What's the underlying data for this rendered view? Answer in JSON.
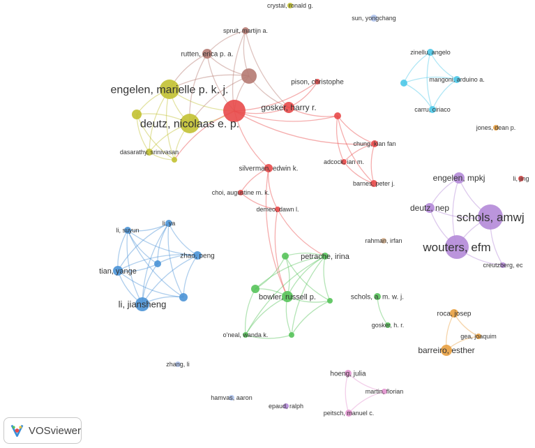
{
  "app": {
    "name": "VOSviewer"
  },
  "clusters": {
    "red": "#e84a4a",
    "brown": "#b57a72",
    "yellow": "#c2c132",
    "cyan": "#4cc8e8",
    "purple": "#b48ad8",
    "blue": "#4b93d6",
    "green": "#57c35a",
    "orange": "#e8a040",
    "pink": "#e293cf",
    "lightblue": "#b0c4ee",
    "tan": "#d8b490"
  },
  "nodes": [
    {
      "id": "crystal",
      "label": "crystal, ronald g.",
      "cluster": "yellow"
    },
    {
      "id": "sun",
      "label": "sun, yongchang",
      "cluster": "lightblue"
    },
    {
      "id": "spruit",
      "label": "spruit, martijn a.",
      "cluster": "brown"
    },
    {
      "id": "rutten",
      "label": "rutten, erica p. a.",
      "cluster": "brown"
    },
    {
      "id": "brown_hub",
      "label": "",
      "cluster": "brown"
    },
    {
      "id": "engelen_mpkj_full",
      "label": "engelen, marielle p. k. j.",
      "cluster": "yellow"
    },
    {
      "id": "deutz_nep_full",
      "label": "deutz, nicolaas e. p.",
      "cluster": "yellow"
    },
    {
      "id": "yellow_left",
      "label": "",
      "cluster": "yellow"
    },
    {
      "id": "dasarathy",
      "label": "dasarathy, srinivasan",
      "cluster": "yellow"
    },
    {
      "id": "yellow_small",
      "label": "",
      "cluster": "yellow"
    },
    {
      "id": "red_hub",
      "label": "",
      "cluster": "red"
    },
    {
      "id": "pison",
      "label": "pison, christophe",
      "cluster": "red"
    },
    {
      "id": "gosker_hr",
      "label": "gosker, harry r.",
      "cluster": "red"
    },
    {
      "id": "red_small",
      "label": "",
      "cluster": "red"
    },
    {
      "id": "chung",
      "label": "chung, kian fan",
      "cluster": "red"
    },
    {
      "id": "adcock",
      "label": "adcock, ian m.",
      "cluster": "red"
    },
    {
      "id": "barnes",
      "label": "barnes, peter j.",
      "cluster": "red"
    },
    {
      "id": "silverman",
      "label": "silverman, edwin k.",
      "cluster": "red"
    },
    {
      "id": "choi",
      "label": "choi, augustine m. k.",
      "cluster": "red"
    },
    {
      "id": "demeo",
      "label": "demeo, dawn l.",
      "cluster": "red"
    },
    {
      "id": "zinellu",
      "label": "zinellu, angelo",
      "cluster": "cyan"
    },
    {
      "id": "mangoni",
      "label": "mangoni, arduino a.",
      "cluster": "cyan"
    },
    {
      "id": "carru",
      "label": "carru, ciriaco",
      "cluster": "cyan"
    },
    {
      "id": "cyan_left",
      "label": "",
      "cluster": "cyan"
    },
    {
      "id": "jones",
      "label": "jones, dean p.",
      "cluster": "orange"
    },
    {
      "id": "li_jing",
      "label": "li, jing",
      "cluster": "red"
    },
    {
      "id": "engelen_mpkj",
      "label": "engelen, mpkj",
      "cluster": "purple"
    },
    {
      "id": "deutz_nep",
      "label": "deutz, nep",
      "cluster": "purple"
    },
    {
      "id": "schols_amwj",
      "label": "schols, amwj",
      "cluster": "purple"
    },
    {
      "id": "wouters",
      "label": "wouters, efm",
      "cluster": "purple"
    },
    {
      "id": "creutzberg",
      "label": "creutzberg, ec",
      "cluster": "purple"
    },
    {
      "id": "rahman",
      "label": "rahman, irfan",
      "cluster": "tan"
    },
    {
      "id": "li_suyun",
      "label": "li, suyun",
      "cluster": "blue"
    },
    {
      "id": "li_ya",
      "label": "li, ya",
      "cluster": "blue"
    },
    {
      "id": "zhao",
      "label": "zhao, peng",
      "cluster": "blue"
    },
    {
      "id": "tian",
      "label": "tian, yange",
      "cluster": "blue"
    },
    {
      "id": "blue_mid",
      "label": "",
      "cluster": "blue"
    },
    {
      "id": "blue_right",
      "label": "",
      "cluster": "blue"
    },
    {
      "id": "li_jiansheng",
      "label": "li, jiansheng",
      "cluster": "blue"
    },
    {
      "id": "petrache",
      "label": "petrache, irina",
      "cluster": "green"
    },
    {
      "id": "bowler",
      "label": "bowler, russell p.",
      "cluster": "green"
    },
    {
      "id": "green_left",
      "label": "",
      "cluster": "green"
    },
    {
      "id": "green_right",
      "label": "",
      "cluster": "green"
    },
    {
      "id": "green_tl",
      "label": "",
      "cluster": "green"
    },
    {
      "id": "oneal",
      "label": "o'neal, wanda k.",
      "cluster": "green"
    },
    {
      "id": "green_bottom",
      "label": "",
      "cluster": "green"
    },
    {
      "id": "schols_amwj_full",
      "label": "schols, a. m. w. j.",
      "cluster": "green"
    },
    {
      "id": "gosker_h",
      "label": "gosker, h. r.",
      "cluster": "green"
    },
    {
      "id": "roca",
      "label": "roca, josep",
      "cluster": "orange"
    },
    {
      "id": "gea",
      "label": "gea, joaquim",
      "cluster": "orange"
    },
    {
      "id": "barreiro",
      "label": "barreiro, esther",
      "cluster": "orange"
    },
    {
      "id": "zhang",
      "label": "zhang, li",
      "cluster": "lightblue"
    },
    {
      "id": "hoeng",
      "label": "hoeng, julia",
      "cluster": "pink"
    },
    {
      "id": "martin",
      "label": "martin, florian",
      "cluster": "pink"
    },
    {
      "id": "peitsch",
      "label": "peitsch, manuel c.",
      "cluster": "pink"
    },
    {
      "id": "hamvas",
      "label": "hamvas, aaron",
      "cluster": "lightblue"
    },
    {
      "id": "epaud",
      "label": "epaud, ralph",
      "cluster": "purple"
    }
  ],
  "links": [
    [
      "spruit",
      "rutten"
    ],
    [
      "spruit",
      "brown_hub"
    ],
    [
      "spruit",
      "red_hub"
    ],
    [
      "spruit",
      "gosker_hr"
    ],
    [
      "rutten",
      "brown_hub"
    ],
    [
      "rutten",
      "engelen_mpkj_full"
    ],
    [
      "rutten",
      "deutz_nep_full"
    ],
    [
      "rutten",
      "red_hub"
    ],
    [
      "brown_hub",
      "red_hub"
    ],
    [
      "brown_hub",
      "deutz_nep_full"
    ],
    [
      "brown_hub",
      "engelen_mpkj_full"
    ],
    [
      "brown_hub",
      "gosker_hr"
    ],
    [
      "engelen_mpkj_full",
      "deutz_nep_full"
    ],
    [
      "engelen_mpkj_full",
      "yellow_left"
    ],
    [
      "engelen_mpkj_full",
      "dasarathy"
    ],
    [
      "engelen_mpkj_full",
      "yellow_small"
    ],
    [
      "engelen_mpkj_full",
      "red_hub"
    ],
    [
      "deutz_nep_full",
      "yellow_left"
    ],
    [
      "deutz_nep_full",
      "dasarathy"
    ],
    [
      "deutz_nep_full",
      "yellow_small"
    ],
    [
      "deutz_nep_full",
      "red_hub"
    ],
    [
      "yellow_left",
      "dasarathy"
    ],
    [
      "yellow_left",
      "yellow_small"
    ],
    [
      "dasarathy",
      "yellow_small"
    ],
    [
      "red_hub",
      "gosker_hr"
    ],
    [
      "red_hub",
      "pison"
    ],
    [
      "red_hub",
      "red_small"
    ],
    [
      "red_hub",
      "chung"
    ],
    [
      "red_hub",
      "silverman"
    ],
    [
      "red_hub",
      "yellow_small"
    ],
    [
      "gosker_hr",
      "red_small"
    ],
    [
      "gosker_hr",
      "pison"
    ],
    [
      "red_small",
      "chung"
    ],
    [
      "red_small",
      "adcock"
    ],
    [
      "red_small",
      "barnes"
    ],
    [
      "chung",
      "adcock"
    ],
    [
      "chung",
      "barnes"
    ],
    [
      "adcock",
      "barnes"
    ],
    [
      "silverman",
      "choi"
    ],
    [
      "silverman",
      "demeo"
    ],
    [
      "choi",
      "demeo"
    ],
    [
      "demeo",
      "bowler"
    ],
    [
      "demeo",
      "petrache"
    ],
    [
      "silverman",
      "bowler"
    ],
    [
      "zinellu",
      "mangoni"
    ],
    [
      "zinellu",
      "carru"
    ],
    [
      "zinellu",
      "cyan_left"
    ],
    [
      "mangoni",
      "carru"
    ],
    [
      "mangoni",
      "cyan_left"
    ],
    [
      "carru",
      "cyan_left"
    ],
    [
      "engelen_mpkj",
      "deutz_nep"
    ],
    [
      "engelen_mpkj",
      "schols_amwj"
    ],
    [
      "engelen_mpkj",
      "wouters"
    ],
    [
      "deutz_nep",
      "schols_amwj"
    ],
    [
      "deutz_nep",
      "wouters"
    ],
    [
      "schols_amwj",
      "wouters"
    ],
    [
      "schols_amwj",
      "creutzberg"
    ],
    [
      "wouters",
      "creutzberg"
    ],
    [
      "li_suyun",
      "li_ya"
    ],
    [
      "li_suyun",
      "zhao"
    ],
    [
      "li_suyun",
      "tian"
    ],
    [
      "li_suyun",
      "blue_mid"
    ],
    [
      "li_suyun",
      "blue_right"
    ],
    [
      "li_suyun",
      "li_jiansheng"
    ],
    [
      "li_ya",
      "zhao"
    ],
    [
      "li_ya",
      "tian"
    ],
    [
      "li_ya",
      "blue_mid"
    ],
    [
      "li_ya",
      "blue_right"
    ],
    [
      "li_ya",
      "li_jiansheng"
    ],
    [
      "zhao",
      "tian"
    ],
    [
      "zhao",
      "blue_mid"
    ],
    [
      "zhao",
      "blue_right"
    ],
    [
      "zhao",
      "li_jiansheng"
    ],
    [
      "tian",
      "blue_mid"
    ],
    [
      "tian",
      "blue_right"
    ],
    [
      "tian",
      "li_jiansheng"
    ],
    [
      "blue_mid",
      "li_jiansheng"
    ],
    [
      "blue_right",
      "li_jiansheng"
    ],
    [
      "petrache",
      "bowler"
    ],
    [
      "petrache",
      "green_left"
    ],
    [
      "petrache",
      "green_right"
    ],
    [
      "petrache",
      "green_tl"
    ],
    [
      "petrache",
      "oneal"
    ],
    [
      "petrache",
      "green_bottom"
    ],
    [
      "bowler",
      "green_left"
    ],
    [
      "bowler",
      "green_right"
    ],
    [
      "bowler",
      "green_tl"
    ],
    [
      "bowler",
      "oneal"
    ],
    [
      "bowler",
      "green_bottom"
    ],
    [
      "green_left",
      "green_tl"
    ],
    [
      "green_left",
      "oneal"
    ],
    [
      "green_right",
      "green_bottom"
    ],
    [
      "green_tl",
      "green_right"
    ],
    [
      "oneal",
      "green_bottom"
    ],
    [
      "schols_amwj_full",
      "gosker_h"
    ],
    [
      "roca",
      "gea"
    ],
    [
      "roca",
      "barreiro"
    ],
    [
      "gea",
      "barreiro"
    ],
    [
      "hoeng",
      "martin"
    ],
    [
      "hoeng",
      "peitsch"
    ],
    [
      "martin",
      "peitsch"
    ]
  ]
}
